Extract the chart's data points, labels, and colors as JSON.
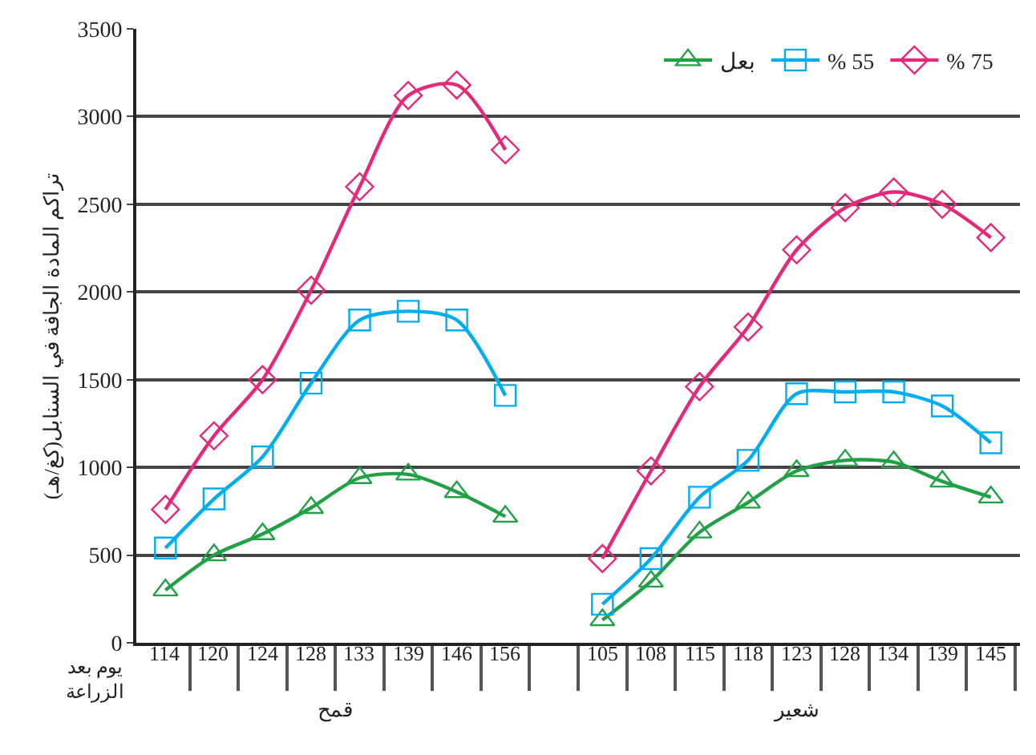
{
  "chart_data": {
    "type": "line",
    "xlabel": "يوم بعد الزراعة",
    "ylabel": "تراكم المادة الجافة في السنابل(كغ/هـ)",
    "categories": [
      "114",
      "120",
      "124",
      "128",
      "133",
      "139",
      "146",
      "156",
      null,
      "105",
      "108",
      "115",
      "118",
      "123",
      "128",
      "134",
      "139",
      "145"
    ],
    "series": [
      {
        "name": "بعل",
        "color": "#22a045",
        "marker": "triangle",
        "values": [
          300,
          500,
          620,
          770,
          940,
          960,
          860,
          720,
          null,
          130,
          350,
          630,
          800,
          980,
          1040,
          1030,
          920,
          830
        ]
      },
      {
        "name": "% 55",
        "color": "#00aeef",
        "marker": "square",
        "values": [
          540,
          820,
          1060,
          1480,
          1840,
          1890,
          1840,
          1410,
          null,
          220,
          480,
          830,
          1040,
          1420,
          1430,
          1430,
          1350,
          1140
        ]
      },
      {
        "name": "% 75",
        "color": "#e6287a",
        "marker": "diamond",
        "values": [
          760,
          1180,
          1500,
          2010,
          2600,
          3120,
          3180,
          2810,
          null,
          480,
          980,
          1460,
          1800,
          2240,
          2480,
          2570,
          2500,
          2310
        ]
      }
    ],
    "annotations": [
      "قمح",
      "شعير"
    ],
    "ylim": [
      0,
      3500
    ],
    "yticks": [
      0,
      500,
      1000,
      1500,
      2000,
      2500,
      3000,
      3500
    ],
    "grid": "y",
    "legend": "top right",
    "line_style": "solid"
  }
}
